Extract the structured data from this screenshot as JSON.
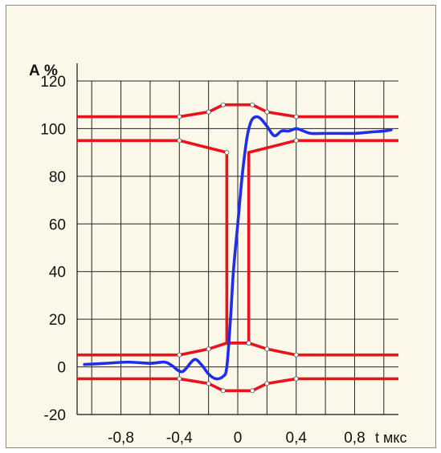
{
  "chart_data": {
    "type": "line",
    "title": "",
    "ylabel": "А %",
    "xlabel": "t мкс",
    "ylim": [
      -20,
      120
    ],
    "xlim": [
      -1.1,
      1.1
    ],
    "grid": true,
    "yticks": [
      {
        "value": 120,
        "label": "120"
      },
      {
        "value": 100,
        "label": "100"
      },
      {
        "value": 80,
        "label": "80"
      },
      {
        "value": 60,
        "label": "60"
      },
      {
        "value": 40,
        "label": "40"
      },
      {
        "value": 20,
        "label": "20"
      },
      {
        "value": 0,
        "label": "0"
      },
      {
        "value": -20,
        "label": "-20"
      }
    ],
    "xticks": [
      {
        "value": -0.8,
        "label": "-0,8"
      },
      {
        "value": -0.4,
        "label": "-0,4"
      },
      {
        "value": 0,
        "label": "0"
      },
      {
        "value": 0.4,
        "label": "0,4"
      },
      {
        "value": 0.8,
        "label": "0,8"
      }
    ],
    "x_grid_values": [
      -1.0,
      -0.8,
      -0.6,
      -0.4,
      -0.2,
      0,
      0.2,
      0.4,
      0.6,
      0.8,
      1.0
    ],
    "series": [
      {
        "color": "#e8141c",
        "role": "upper-limit-top",
        "x": [
          -1.1,
          -0.4,
          -0.2,
          -0.1,
          0.1,
          0.2,
          0.4,
          1.1
        ],
        "y": [
          105,
          105,
          107,
          110,
          110,
          107,
          105,
          105
        ],
        "markers": [
          -0.4,
          -0.2,
          -0.1,
          0.1,
          0.2,
          0.4
        ]
      },
      {
        "color": "#e8141c",
        "role": "upper-limit-bottom",
        "x": [
          -1.1,
          -0.4,
          -0.075,
          -0.075,
          0.075,
          0.075,
          0.4,
          1.1
        ],
        "y": [
          95,
          95,
          90,
          10,
          10,
          90,
          95,
          95
        ],
        "markers": [
          -0.4,
          -0.075,
          0.075,
          0.4
        ]
      },
      {
        "color": "#e8141c",
        "role": "lower-limit-top",
        "x": [
          -1.1,
          -0.4,
          -0.2,
          -0.075,
          0.075,
          0.2,
          0.4,
          1.1
        ],
        "y": [
          5,
          5,
          7.5,
          10,
          10,
          7.5,
          5,
          5
        ],
        "markers": [
          -0.4,
          -0.2,
          0.075,
          0.2,
          0.4
        ]
      },
      {
        "color": "#e8141c",
        "role": "lower-limit-bottom",
        "x": [
          -1.1,
          -0.4,
          -0.2,
          -0.1,
          0.1,
          0.2,
          0.4,
          1.1
        ],
        "y": [
          -5,
          -5,
          -7,
          -10,
          -10,
          -7,
          -5,
          -5
        ],
        "markers": [
          -0.4,
          -0.2,
          -0.1,
          0.1,
          0.2,
          0.4
        ]
      },
      {
        "color": "#1f2ee8",
        "role": "signal",
        "x": [
          -1.05,
          -0.9,
          -0.75,
          -0.6,
          -0.5,
          -0.45,
          -0.38,
          -0.3,
          -0.25,
          -0.2,
          -0.15,
          -0.1,
          -0.075,
          -0.05,
          -0.03,
          0,
          0.03,
          0.06,
          0.08,
          0.1,
          0.13,
          0.16,
          0.2,
          0.25,
          0.3,
          0.35,
          0.4,
          0.45,
          0.5,
          0.6,
          0.7,
          0.8,
          0.9,
          1.0,
          1.05
        ],
        "y": [
          1,
          1.5,
          2,
          1.5,
          2,
          0.5,
          -2,
          3,
          1,
          -3,
          -5,
          -4,
          0,
          20,
          40,
          60,
          80,
          95,
          101,
          104,
          105,
          104,
          101,
          97,
          99,
          99,
          100,
          99,
          98,
          98,
          98,
          98,
          98.5,
          99,
          99.5
        ]
      }
    ]
  }
}
